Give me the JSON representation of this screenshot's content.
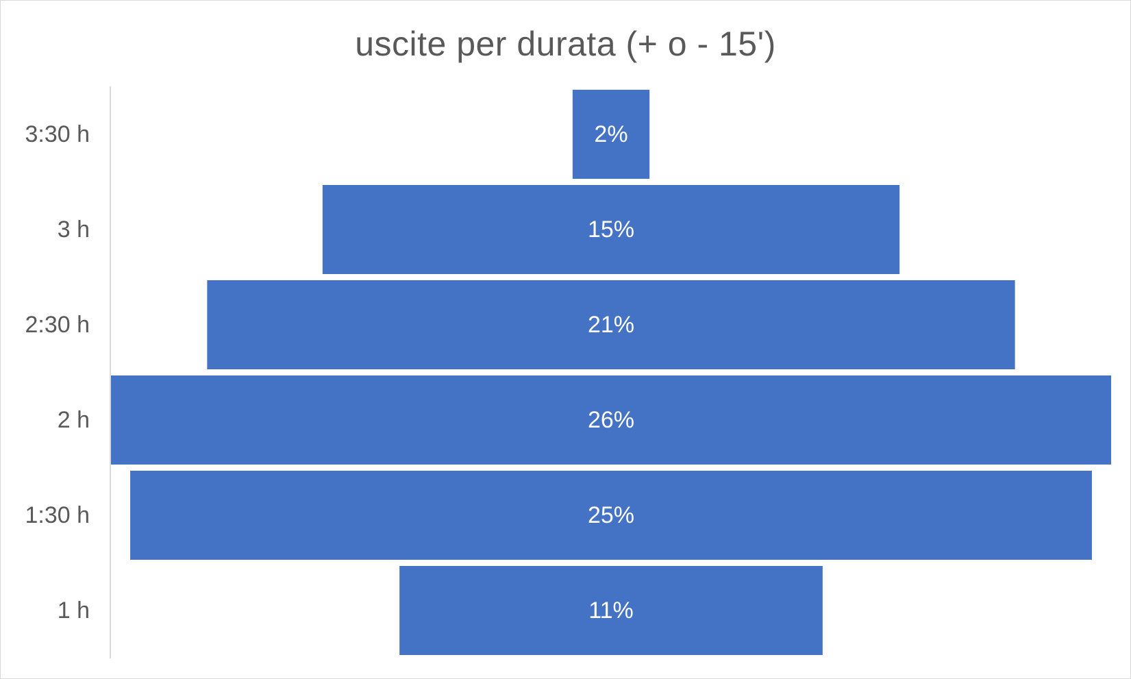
{
  "chart_data": {
    "type": "bar",
    "orientation": "horizontal",
    "layout": "centered (funnel)",
    "title": "uscite per durata (+ o - 15')",
    "categories": [
      "3:30 h",
      "3 h",
      "2:30 h",
      "2 h",
      "1:30 h",
      "1 h"
    ],
    "values": [
      2,
      15,
      21,
      26,
      25,
      11
    ],
    "value_unit": "%",
    "data_labels": [
      "2%",
      "15%",
      "21%",
      "26%",
      "25%",
      "11%"
    ],
    "bar_color": "#4472C4",
    "label_color": "#FFFFFF",
    "legend": "none",
    "grid": false
  }
}
